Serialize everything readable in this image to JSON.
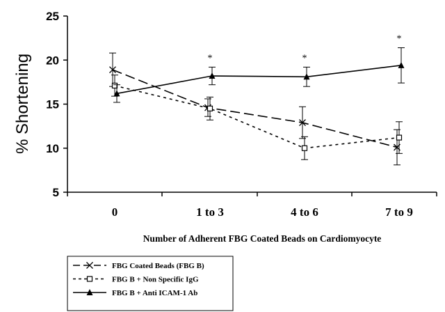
{
  "chart_data": {
    "type": "line",
    "categories": [
      "0",
      "1 to 3",
      "4 to 6",
      "7 to 9"
    ],
    "xlabel": "Number of Adherent FBG Coated Beads on Cardiomyocyte",
    "ylabel": "% Shortening",
    "ylim": [
      5,
      25
    ],
    "yticks": [
      5,
      10,
      15,
      20,
      25
    ],
    "grid": false,
    "legend_placement": "bottom-left",
    "annotations": [
      "*",
      "*",
      "*"
    ],
    "annotation_categories": [
      "1 to 3",
      "4 to 6",
      "7 to 9"
    ],
    "series": [
      {
        "name": "FBG Coated Beads (FBG B)",
        "values": [
          18.9,
          14.6,
          12.9,
          10.1
        ],
        "error": [
          1.9,
          1.0,
          1.8,
          2.0
        ],
        "marker": "x",
        "line_style": "long-dash",
        "color": "#000000"
      },
      {
        "name": "FBG B + Non Specific IgG",
        "values": [
          17.1,
          14.5,
          10.0,
          11.2
        ],
        "error": [
          1.2,
          1.3,
          1.3,
          1.8
        ],
        "marker": "open-square",
        "line_style": "dotted",
        "color": "#000000"
      },
      {
        "name": "FBG B + Anti ICAM-1 Ab",
        "values": [
          16.2,
          18.2,
          18.1,
          19.4
        ],
        "error": [
          1.0,
          1.0,
          1.1,
          2.0
        ],
        "marker": "filled-triangle",
        "line_style": "solid",
        "color": "#000000"
      }
    ]
  }
}
